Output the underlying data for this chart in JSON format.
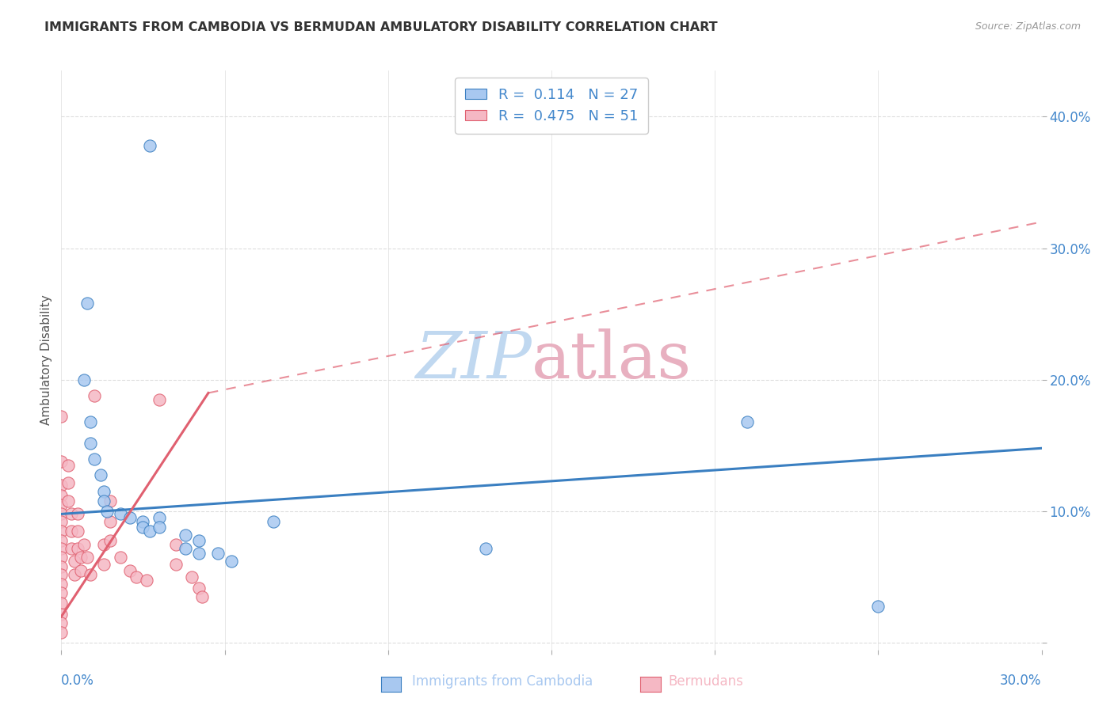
{
  "title": "IMMIGRANTS FROM CAMBODIA VS BERMUDAN AMBULATORY DISABILITY CORRELATION CHART",
  "source": "Source: ZipAtlas.com",
  "ylabel": "Ambulatory Disability",
  "y_ticks": [
    0.0,
    0.1,
    0.2,
    0.3,
    0.4
  ],
  "y_tick_labels": [
    "",
    "10.0%",
    "20.0%",
    "30.0%",
    "40.0%"
  ],
  "x_lim": [
    0.0,
    0.3
  ],
  "y_lim": [
    -0.005,
    0.435
  ],
  "blue_color": "#a8c8f0",
  "pink_color": "#f5b8c4",
  "blue_line_color": "#3a7fc1",
  "pink_line_color": "#e06070",
  "axis_label_color": "#4488cc",
  "watermark_blue": "#c0d8f0",
  "watermark_pink": "#e8b0c0",
  "blue_scatter": [
    [
      0.027,
      0.378
    ],
    [
      0.008,
      0.258
    ],
    [
      0.007,
      0.2
    ],
    [
      0.009,
      0.168
    ],
    [
      0.009,
      0.152
    ],
    [
      0.01,
      0.14
    ],
    [
      0.012,
      0.128
    ],
    [
      0.013,
      0.115
    ],
    [
      0.013,
      0.108
    ],
    [
      0.014,
      0.1
    ],
    [
      0.018,
      0.098
    ],
    [
      0.021,
      0.095
    ],
    [
      0.025,
      0.092
    ],
    [
      0.025,
      0.088
    ],
    [
      0.027,
      0.085
    ],
    [
      0.03,
      0.095
    ],
    [
      0.03,
      0.088
    ],
    [
      0.038,
      0.082
    ],
    [
      0.038,
      0.072
    ],
    [
      0.042,
      0.078
    ],
    [
      0.042,
      0.068
    ],
    [
      0.048,
      0.068
    ],
    [
      0.052,
      0.062
    ],
    [
      0.065,
      0.092
    ],
    [
      0.13,
      0.072
    ],
    [
      0.21,
      0.168
    ],
    [
      0.25,
      0.028
    ]
  ],
  "pink_scatter": [
    [
      0.0,
      0.172
    ],
    [
      0.0,
      0.138
    ],
    [
      0.0,
      0.12
    ],
    [
      0.0,
      0.112
    ],
    [
      0.0,
      0.105
    ],
    [
      0.0,
      0.098
    ],
    [
      0.0,
      0.092
    ],
    [
      0.0,
      0.085
    ],
    [
      0.0,
      0.078
    ],
    [
      0.0,
      0.072
    ],
    [
      0.0,
      0.065
    ],
    [
      0.0,
      0.058
    ],
    [
      0.0,
      0.052
    ],
    [
      0.0,
      0.045
    ],
    [
      0.0,
      0.038
    ],
    [
      0.0,
      0.03
    ],
    [
      0.0,
      0.022
    ],
    [
      0.0,
      0.015
    ],
    [
      0.0,
      0.008
    ],
    [
      0.002,
      0.135
    ],
    [
      0.002,
      0.122
    ],
    [
      0.002,
      0.108
    ],
    [
      0.003,
      0.098
    ],
    [
      0.003,
      0.085
    ],
    [
      0.003,
      0.072
    ],
    [
      0.004,
      0.062
    ],
    [
      0.004,
      0.052
    ],
    [
      0.005,
      0.098
    ],
    [
      0.005,
      0.085
    ],
    [
      0.005,
      0.072
    ],
    [
      0.006,
      0.065
    ],
    [
      0.006,
      0.055
    ],
    [
      0.007,
      0.075
    ],
    [
      0.008,
      0.065
    ],
    [
      0.009,
      0.052
    ],
    [
      0.01,
      0.188
    ],
    [
      0.013,
      0.075
    ],
    [
      0.013,
      0.06
    ],
    [
      0.015,
      0.108
    ],
    [
      0.015,
      0.092
    ],
    [
      0.015,
      0.078
    ],
    [
      0.018,
      0.065
    ],
    [
      0.021,
      0.055
    ],
    [
      0.023,
      0.05
    ],
    [
      0.026,
      0.048
    ],
    [
      0.03,
      0.185
    ],
    [
      0.035,
      0.075
    ],
    [
      0.035,
      0.06
    ],
    [
      0.04,
      0.05
    ],
    [
      0.042,
      0.042
    ],
    [
      0.043,
      0.035
    ]
  ],
  "blue_regline": [
    [
      0.0,
      0.098
    ],
    [
      0.3,
      0.148
    ]
  ],
  "pink_regline_solid": [
    [
      0.0,
      0.02
    ],
    [
      0.045,
      0.19
    ]
  ],
  "pink_regline_dashed": [
    [
      0.045,
      0.19
    ],
    [
      0.3,
      0.32
    ]
  ]
}
